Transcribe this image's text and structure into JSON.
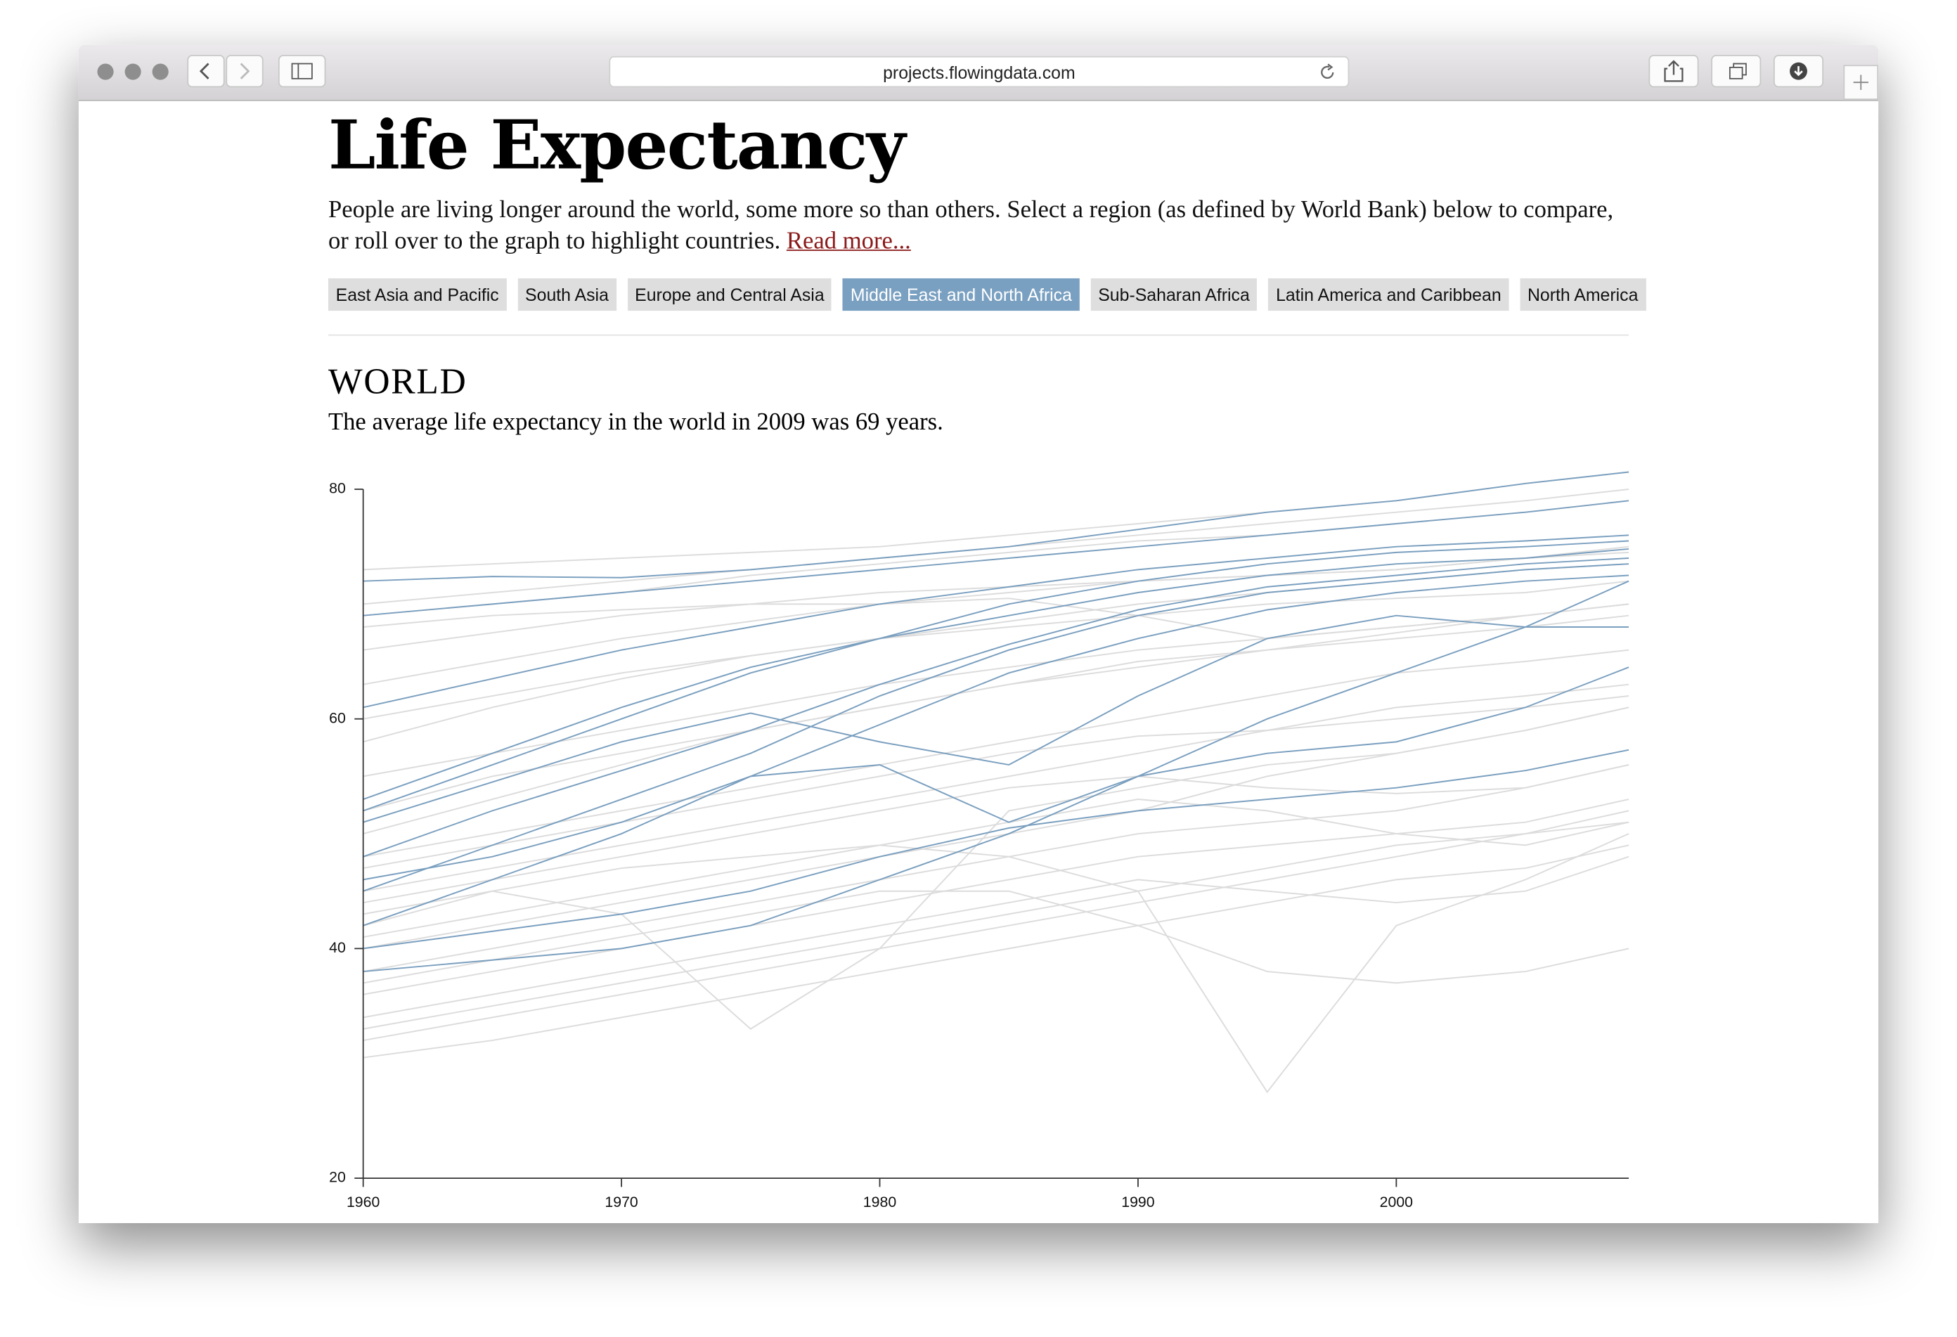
{
  "browser": {
    "url": "projects.flowingdata.com"
  },
  "header": {
    "title": "Life Expectancy",
    "intro": "People are living longer around the world, some more so than others. Select a region (as defined by World Bank) below to compare, or roll over to the graph to highlight countries.",
    "read_more": "Read more..."
  },
  "regions": [
    "East Asia and Pacific",
    "South Asia",
    "Europe and Central Asia",
    "Middle East and North Africa",
    "Sub-Saharan Africa",
    "Latin America and Caribbean",
    "North America"
  ],
  "selected_region": 3,
  "section": {
    "title": "WORLD",
    "summary": "The average life expectancy in the world in 2009 was 69 years."
  },
  "chart_data": {
    "type": "line",
    "x": [
      1960,
      1965,
      1970,
      1975,
      1980,
      1985,
      1990,
      1995,
      2000,
      2005,
      2009
    ],
    "xlim": [
      1960,
      2009
    ],
    "xticks": [
      1960,
      1970,
      1980,
      1990,
      2000
    ],
    "ylim": [
      20,
      80
    ],
    "yticks": [
      20,
      40,
      60,
      80
    ],
    "series": [
      {
        "color": "#dcdcdc",
        "values": [
          73,
          73.5,
          74,
          74.5,
          75,
          76,
          77,
          78,
          79,
          80.5,
          81.5
        ]
      },
      {
        "color": "#dcdcdc",
        "values": [
          70,
          71,
          72,
          73,
          74,
          75,
          76,
          77,
          78,
          79,
          80
        ]
      },
      {
        "color": "#dcdcdc",
        "values": [
          69,
          70,
          71,
          72.5,
          73.5,
          74.5,
          75.5,
          76,
          77,
          78,
          79
        ]
      },
      {
        "color": "#dcdcdc",
        "values": [
          66,
          67.5,
          69,
          70,
          71,
          71.5,
          72,
          72.5,
          73,
          74,
          75
        ]
      },
      {
        "color": "#dcdcdc",
        "values": [
          63,
          65,
          67,
          68.5,
          70,
          71,
          72,
          72.5,
          73,
          74,
          74.5
        ]
      },
      {
        "color": "#dcdcdc",
        "values": [
          58,
          61,
          63.5,
          65.5,
          67,
          68.5,
          70,
          71,
          72,
          73,
          73.5
        ]
      },
      {
        "color": "#dcdcdc",
        "values": [
          55,
          57,
          59,
          61,
          63,
          64.5,
          66,
          67,
          68,
          69,
          70
        ]
      },
      {
        "color": "#dcdcdc",
        "values": [
          50,
          53,
          56,
          59,
          61,
          63,
          65,
          66,
          67.5,
          69,
          70
        ]
      },
      {
        "color": "#dcdcdc",
        "values": [
          47,
          49,
          51,
          53,
          55,
          57,
          58.5,
          59,
          60,
          61,
          62
        ]
      },
      {
        "color": "#dcdcdc",
        "values": [
          44,
          46,
          48,
          50,
          52,
          54,
          55,
          54,
          53.5,
          54,
          56
        ]
      },
      {
        "color": "#dcdcdc",
        "values": [
          41,
          43,
          45,
          47,
          49,
          51,
          53,
          52,
          50,
          49,
          51
        ]
      },
      {
        "color": "#dcdcdc",
        "values": [
          40,
          42,
          44,
          46,
          48,
          50,
          52,
          55,
          57,
          59,
          61
        ]
      },
      {
        "color": "#dcdcdc",
        "values": [
          38,
          40,
          42,
          44,
          46,
          48,
          50,
          51,
          52,
          54,
          56
        ]
      },
      {
        "color": "#dcdcdc",
        "values": [
          36,
          38,
          40,
          42,
          44,
          46,
          48,
          49,
          50,
          51,
          53
        ]
      },
      {
        "color": "#dcdcdc",
        "values": [
          34,
          36,
          38,
          40,
          42,
          44,
          46,
          45,
          44,
          45,
          48
        ]
      },
      {
        "color": "#dcdcdc",
        "values": [
          32,
          34,
          36,
          38,
          40,
          42,
          44,
          46,
          48,
          50,
          52
        ]
      },
      {
        "color": "#dcdcdc",
        "values": [
          30.5,
          32,
          34,
          36,
          38,
          40,
          42,
          44,
          46,
          47,
          49
        ]
      },
      {
        "color": "#dcdcdc",
        "values": [
          42,
          45,
          43,
          33,
          40,
          52,
          54,
          56,
          57,
          59,
          61
        ]
      },
      {
        "color": "#dcdcdc",
        "values": [
          43,
          45,
          47,
          48,
          49,
          48,
          45,
          27.5,
          42,
          46,
          50
        ]
      },
      {
        "color": "#dcdcdc",
        "values": [
          37,
          39,
          41,
          43,
          45,
          45,
          42,
          38,
          37,
          38,
          40
        ]
      },
      {
        "color": "#dcdcdc",
        "values": [
          45,
          47,
          49,
          51,
          53,
          55,
          57,
          59,
          61,
          62,
          63
        ]
      },
      {
        "color": "#dcdcdc",
        "values": [
          60,
          62,
          64,
          65.5,
          67,
          68,
          69,
          70,
          70.5,
          71,
          72
        ]
      },
      {
        "color": "#dcdcdc",
        "values": [
          68,
          69,
          69.5,
          70,
          70,
          70.5,
          69,
          67,
          68,
          69,
          70
        ]
      },
      {
        "color": "#dcdcdc",
        "values": [
          33,
          35,
          37,
          39,
          41,
          43,
          45,
          47,
          49,
          50,
          51
        ]
      },
      {
        "color": "#dcdcdc",
        "values": [
          48,
          50,
          52,
          54,
          56,
          58,
          60,
          62,
          64,
          65,
          66
        ]
      },
      {
        "color": "#dcdcdc",
        "values": [
          52,
          55,
          57,
          59,
          61,
          63,
          64.5,
          66,
          67,
          68,
          69
        ]
      },
      {
        "color": "#7a9fbf",
        "values": [
          72,
          72.4,
          72.3,
          73,
          74,
          75,
          76.5,
          78,
          79,
          80.5,
          81.5
        ]
      },
      {
        "color": "#7a9fbf",
        "values": [
          69,
          70,
          71,
          72,
          73,
          74,
          75,
          76,
          77,
          78,
          79
        ]
      },
      {
        "color": "#7a9fbf",
        "values": [
          61,
          63.5,
          66,
          68,
          70,
          71.5,
          73,
          74,
          75,
          75.5,
          76
        ]
      },
      {
        "color": "#7a9fbf",
        "values": [
          52,
          56,
          60,
          64,
          67,
          70,
          72,
          73.5,
          74.5,
          75,
          75.5
        ]
      },
      {
        "color": "#7a9fbf",
        "values": [
          48,
          52,
          55.5,
          59,
          63,
          66.5,
          69.5,
          71.5,
          72.5,
          73.5,
          74
        ]
      },
      {
        "color": "#7a9fbf",
        "values": [
          45,
          49,
          53,
          57,
          62,
          66,
          69,
          71,
          72,
          73,
          73.5
        ]
      },
      {
        "color": "#7a9fbf",
        "values": [
          51,
          54.5,
          58,
          60.5,
          58,
          56,
          62,
          67,
          69,
          68,
          68
        ]
      },
      {
        "color": "#7a9fbf",
        "values": [
          42,
          46,
          50,
          55,
          59.5,
          64,
          67,
          69.5,
          71,
          72,
          72.5
        ]
      },
      {
        "color": "#7a9fbf",
        "values": [
          38,
          39,
          40,
          42,
          46,
          50,
          55,
          60,
          64,
          68,
          72
        ]
      },
      {
        "color": "#7a9fbf",
        "values": [
          46,
          48,
          51,
          55,
          56,
          51,
          55,
          57,
          58,
          61,
          64.5
        ]
      },
      {
        "color": "#7a9fbf",
        "values": [
          40,
          41.5,
          43,
          45,
          48,
          50.5,
          52,
          53,
          54,
          55.5,
          57.3
        ]
      },
      {
        "color": "#7a9fbf",
        "values": [
          53,
          57,
          61,
          64.5,
          67,
          69,
          71,
          72.5,
          73.5,
          74,
          74.8
        ]
      }
    ]
  }
}
